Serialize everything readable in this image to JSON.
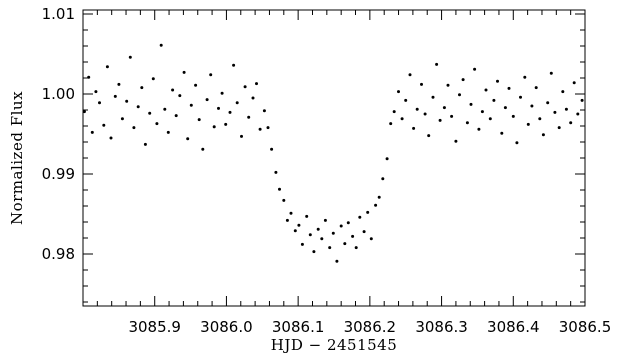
{
  "chart_data": {
    "type": "scatter",
    "title": "",
    "xlabel": "HJD − 2451545",
    "ylabel": "Normalized Flux",
    "xlim": [
      3085.8,
      3086.5
    ],
    "ylim": [
      0.9735,
      1.0105
    ],
    "x_ticks": [
      3085.9,
      3086.0,
      3086.1,
      3086.2,
      3086.3,
      3086.4,
      3086.5
    ],
    "x_tick_labels": [
      "3085.9",
      "3086.0",
      "3086.1",
      "3086.2",
      "3086.3",
      "3086.4",
      "3086.5"
    ],
    "y_ticks": [
      0.98,
      0.99,
      1.0,
      1.01
    ],
    "y_tick_labels": [
      "0.98",
      "0.99",
      "1.00",
      "1.01"
    ],
    "grid": false,
    "legend": "none",
    "marker_color": "#000000",
    "series": [
      {
        "x": [
          3085.802,
          3085.808,
          3085.813,
          3085.818,
          3085.823,
          3085.829,
          3085.834,
          3085.839,
          3085.845,
          3085.85,
          3085.855,
          3085.861,
          3085.866,
          3085.871,
          3085.877,
          3085.882,
          3085.887,
          3085.893,
          3085.898,
          3085.903,
          3085.909,
          3085.914,
          3085.919,
          3085.925,
          3085.93,
          3085.935,
          3085.941,
          3085.946,
          3085.951,
          3085.957,
          3085.962,
          3085.967,
          3085.973,
          3085.978,
          3085.983,
          3085.989,
          3085.994,
          3085.999,
          3086.005,
          3086.01,
          3086.015,
          3086.021,
          3086.026,
          3086.031,
          3086.037,
          3086.042,
          3086.047,
          3086.053,
          3086.058,
          3086.063,
          3086.069,
          3086.074,
          3086.08,
          3086.085,
          3086.09,
          3086.096,
          3086.101,
          3086.106,
          3086.112,
          3086.117,
          3086.122,
          3086.128,
          3086.133,
          3086.138,
          3086.144,
          3086.149,
          3086.154,
          3086.16,
          3086.165,
          3086.17,
          3086.176,
          3086.181,
          3086.186,
          3086.192,
          3086.197,
          3086.202,
          3086.208,
          3086.213,
          3086.218,
          3086.224,
          3086.229,
          3086.234,
          3086.24,
          3086.245,
          3086.25,
          3086.256,
          3086.261,
          3086.266,
          3086.272,
          3086.277,
          3086.282,
          3086.288,
          3086.293,
          3086.298,
          3086.304,
          3086.309,
          3086.314,
          3086.32,
          3086.325,
          3086.33,
          3086.336,
          3086.341,
          3086.346,
          3086.352,
          3086.357,
          3086.362,
          3086.368,
          3086.373,
          3086.378,
          3086.384,
          3086.389,
          3086.394,
          3086.4,
          3086.405,
          3086.41,
          3086.416,
          3086.421,
          3086.426,
          3086.432,
          3086.437,
          3086.442,
          3086.448,
          3086.453,
          3086.458,
          3086.464,
          3086.469,
          3086.474,
          3086.48,
          3086.485,
          3086.49,
          3086.496
        ],
        "y": [
          0.9978,
          1.0021,
          0.9952,
          1.0003,
          0.9989,
          0.9961,
          1.0034,
          0.9945,
          0.9997,
          1.0012,
          0.9969,
          0.9991,
          1.0046,
          0.9958,
          0.9984,
          1.0008,
          0.9937,
          0.9976,
          1.0019,
          0.9963,
          1.0061,
          0.9981,
          0.9952,
          1.0005,
          0.9973,
          0.9998,
          1.0027,
          0.9944,
          0.9986,
          1.0011,
          0.9968,
          0.9931,
          0.9993,
          1.0024,
          0.9959,
          0.9982,
          1.0001,
          0.9962,
          0.9977,
          1.0036,
          0.9989,
          0.9947,
          1.0009,
          0.9971,
          0.9995,
          1.0013,
          0.9956,
          0.9979,
          0.9958,
          0.9931,
          0.9902,
          0.9881,
          0.9867,
          0.9842,
          0.9851,
          0.9829,
          0.9836,
          0.9812,
          0.9847,
          0.9824,
          0.9803,
          0.9831,
          0.9819,
          0.9842,
          0.9808,
          0.9826,
          0.9791,
          0.9835,
          0.9813,
          0.9839,
          0.9822,
          0.9808,
          0.9846,
          0.9828,
          0.9852,
          0.9819,
          0.9861,
          0.9871,
          0.9894,
          0.9919,
          0.9963,
          0.9978,
          1.0003,
          0.9969,
          0.9992,
          1.0024,
          0.9957,
          0.9981,
          1.0012,
          0.9975,
          0.9948,
          0.9996,
          1.0037,
          0.9967,
          0.9983,
          1.0011,
          0.9972,
          0.9941,
          0.9999,
          1.0018,
          0.9964,
          0.9987,
          1.0031,
          0.9956,
          0.9978,
          1.0005,
          0.9969,
          0.9992,
          1.0016,
          0.9951,
          0.9983,
          1.0007,
          0.9972,
          0.9939,
          0.9996,
          1.0021,
          0.9962,
          0.9985,
          1.0008,
          0.9969,
          0.9949,
          0.9989,
          1.0026,
          0.9977,
          0.9958,
          1.0003,
          0.9981,
          0.9964,
          1.0014,
          0.9975,
          0.9992
        ]
      }
    ]
  }
}
